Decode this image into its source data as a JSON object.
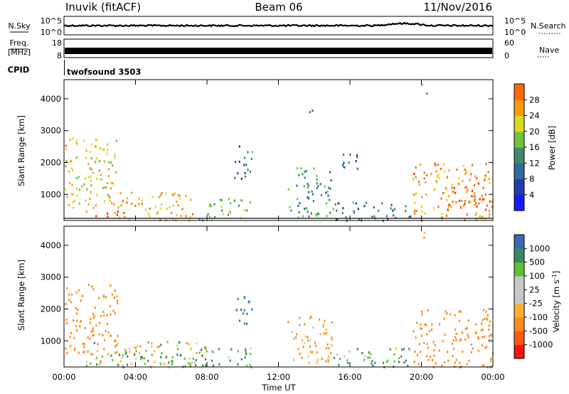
{
  "header": {
    "station": "Inuvik (fitACF)",
    "beam": "Beam 06",
    "date": "11/Nov/2016"
  },
  "top_panels": {
    "nsky_label": "N.Sky",
    "nsky_ticks": [
      "10^5",
      "10^0"
    ],
    "nsearch_label": "N.Search",
    "nsearch_ticks": [
      "10^5",
      "10^0"
    ],
    "freq_label": "Freq.",
    "freq_unit": "[MHz]",
    "freq_ticks": [
      "18",
      "8"
    ],
    "nave_label": "Nave",
    "nave_ticks": [
      "60",
      "0"
    ],
    "cpid_label": "CPID",
    "cpid_value": "twofsound 3503"
  },
  "colors": {
    "power_scale": [
      "#1a1aff",
      "#1f3ea8",
      "#2e6b9e",
      "#3c8a6a",
      "#6fc23c",
      "#d8d820",
      "#ff9a10",
      "#ff6a00",
      "#ff2b00"
    ],
    "velocity_scale": [
      "#ff1010",
      "#ff5a10",
      "#ff8c1a",
      "#ffb030",
      "#c8c8c8",
      "#c8c8c8",
      "#60c030",
      "#3a8a60",
      "#3a6ab0",
      "#1a1aff"
    ]
  },
  "chart_data": [
    {
      "type": "heatmap",
      "name": "power",
      "title": "",
      "xlabel": "",
      "ylabel": "Slant Range [km]",
      "xlim": [
        "00:00",
        "24:00"
      ],
      "ylim": [
        180,
        4600
      ],
      "yticks": [
        "1000",
        "2000",
        "3000",
        "4000"
      ],
      "colorbar": {
        "label": "Power [dB]",
        "range": [
          0,
          32
        ],
        "ticks": [
          "4",
          "8",
          "12",
          "16",
          "20",
          "24",
          "28"
        ]
      },
      "echo_regions": [
        {
          "t_start": 0.0,
          "t_end": 3.0,
          "range_start": 600,
          "range_end": 2800,
          "power": 20
        },
        {
          "t_start": 1.2,
          "t_end": 3.0,
          "range_start": 200,
          "range_end": 500,
          "power": 28
        },
        {
          "t_start": 3.0,
          "t_end": 7.5,
          "range_start": 200,
          "range_end": 1100,
          "power": 22
        },
        {
          "t_start": 7.5,
          "t_end": 10.5,
          "range_start": 200,
          "range_end": 900,
          "power": 16
        },
        {
          "t_start": 9.5,
          "t_end": 10.5,
          "range_start": 1500,
          "range_end": 2600,
          "power": 10
        },
        {
          "t_start": 12.5,
          "t_end": 15.0,
          "range_start": 300,
          "range_end": 1900,
          "power": 12
        },
        {
          "t_start": 13.5,
          "t_end": 14.0,
          "range_start": 3400,
          "range_end": 3700,
          "power": 14
        },
        {
          "t_start": 15.0,
          "t_end": 16.5,
          "range_start": 1800,
          "range_end": 2300,
          "power": 8
        },
        {
          "t_start": 15.0,
          "t_end": 19.5,
          "range_start": 200,
          "range_end": 800,
          "power": 10
        },
        {
          "t_start": 19.5,
          "t_end": 24.0,
          "range_start": 200,
          "range_end": 2000,
          "power": 24
        },
        {
          "t_start": 21.5,
          "t_end": 23.5,
          "range_start": 600,
          "range_end": 1400,
          "power": 30
        },
        {
          "t_start": 20.0,
          "t_end": 20.5,
          "range_start": 4200,
          "range_end": 4500,
          "power": 14
        }
      ]
    },
    {
      "type": "heatmap",
      "name": "velocity",
      "title": "",
      "xlabel": "Time UT",
      "ylabel": "Slant Range [km]",
      "xlim": [
        "00:00",
        "24:00"
      ],
      "ylim": [
        180,
        4600
      ],
      "xticks": [
        "00:00",
        "04:00",
        "08:00",
        "12:00",
        "16:00",
        "20:00",
        "00:00"
      ],
      "yticks": [
        "1000",
        "2000",
        "3000",
        "4000"
      ],
      "colorbar": {
        "label": "Velocity [m s-1]",
        "ticks": [
          "1000",
          "500",
          "100",
          "25",
          "-25",
          "-100",
          "-500",
          "-1000"
        ]
      },
      "echo_regions": [
        {
          "t_start": 0.0,
          "t_end": 3.0,
          "range_start": 600,
          "range_end": 2800,
          "velocity": -300
        },
        {
          "t_start": 1.2,
          "t_end": 8.0,
          "range_start": 200,
          "range_end": 1000,
          "velocity": 0
        },
        {
          "t_start": 3.0,
          "t_end": 7.5,
          "range_start": 200,
          "range_end": 700,
          "velocity": 80
        },
        {
          "t_start": 7.5,
          "t_end": 10.5,
          "range_start": 200,
          "range_end": 800,
          "velocity": 150
        },
        {
          "t_start": 9.5,
          "t_end": 10.5,
          "range_start": 1500,
          "range_end": 2500,
          "velocity": 600
        },
        {
          "t_start": 12.5,
          "t_end": 15.0,
          "range_start": 300,
          "range_end": 1800,
          "velocity": -150
        },
        {
          "t_start": 15.0,
          "t_end": 19.5,
          "range_start": 200,
          "range_end": 800,
          "velocity": 100
        },
        {
          "t_start": 19.5,
          "t_end": 24.0,
          "range_start": 200,
          "range_end": 2000,
          "velocity": -300
        },
        {
          "t_start": 20.0,
          "t_end": 20.5,
          "range_start": 4200,
          "range_end": 4500,
          "velocity": -200
        }
      ]
    }
  ]
}
